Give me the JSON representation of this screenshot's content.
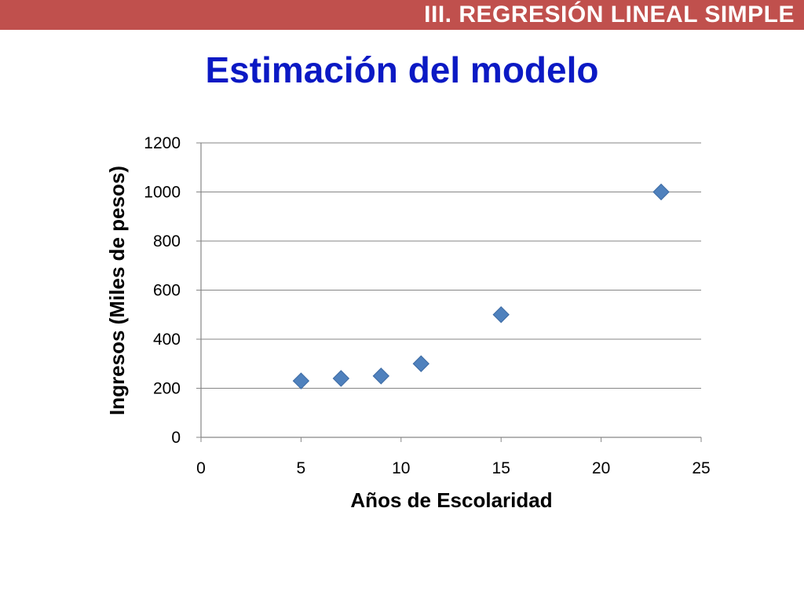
{
  "header": {
    "section_title": "III. REGRESIÓN LINEAL SIMPLE"
  },
  "slide": {
    "title": "Estimación del modelo"
  },
  "colors": {
    "header_bar": "#c0504d",
    "title_text": "#0b19c4",
    "marker": "#4f81bd",
    "gridline": "#868686"
  },
  "chart_data": {
    "type": "scatter",
    "title": "",
    "xlabel": "Años de Escolaridad",
    "ylabel": "Ingresos (Miles de pesos)",
    "xlim": [
      0,
      25
    ],
    "ylim": [
      0,
      1200
    ],
    "xticks": [
      0,
      5,
      10,
      15,
      20,
      25
    ],
    "yticks": [
      0,
      200,
      400,
      600,
      800,
      1000,
      1200
    ],
    "grid": "horizontal",
    "legend": "none",
    "marker": "diamond",
    "series": [
      {
        "points": [
          {
            "x": 5,
            "y": 230
          },
          {
            "x": 7,
            "y": 240
          },
          {
            "x": 9,
            "y": 250
          },
          {
            "x": 11,
            "y": 300
          },
          {
            "x": 15,
            "y": 500
          },
          {
            "x": 23,
            "y": 1000
          }
        ]
      }
    ]
  }
}
